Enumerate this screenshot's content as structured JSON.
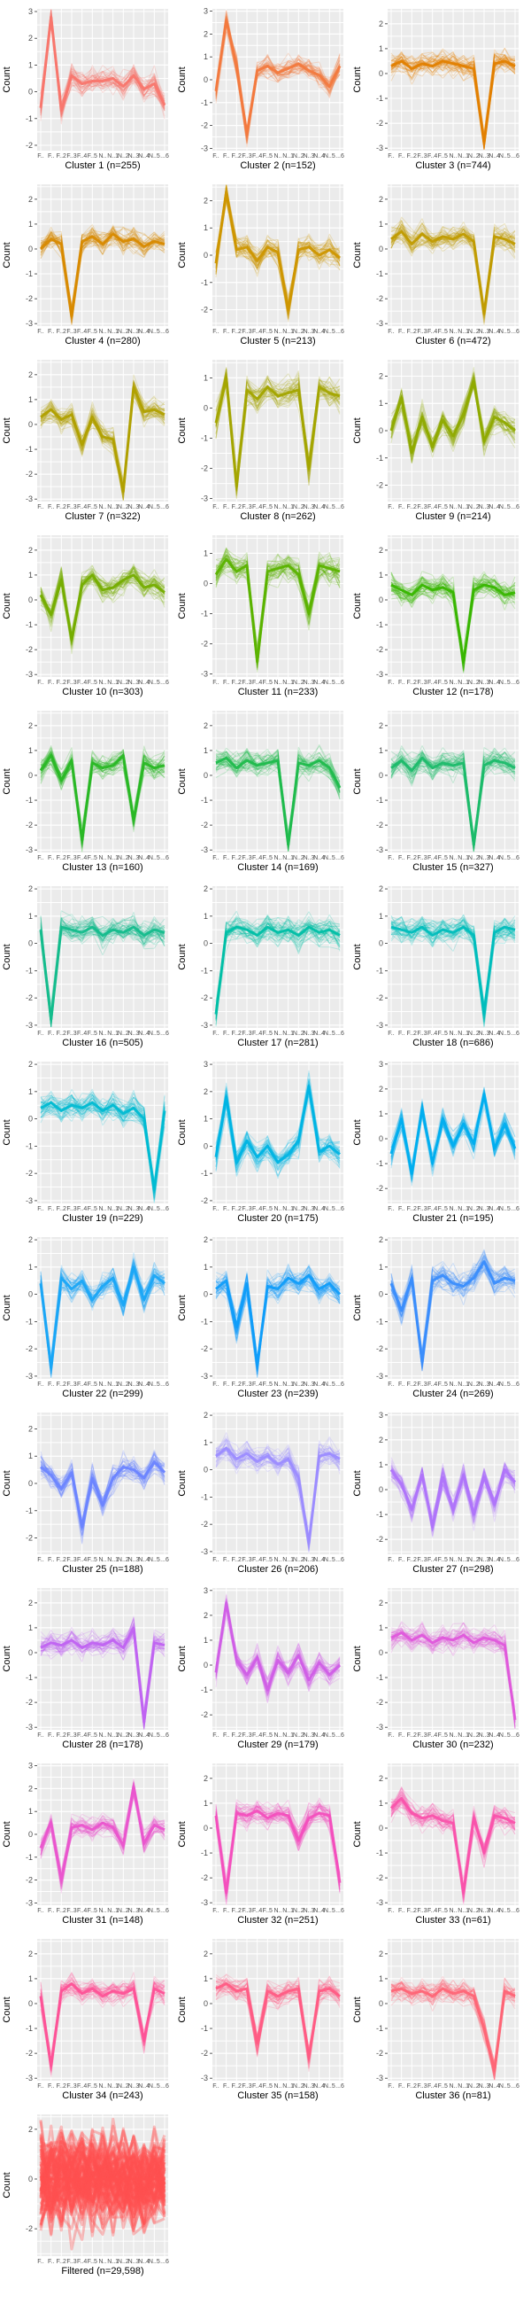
{
  "axes": {
    "ylabel": "Count",
    "x_categories": [
      "F..",
      "F..",
      "F..2",
      "F..3",
      "F..4",
      "F..5",
      "N..",
      "N..1",
      "N..2",
      "N..3",
      "N..4",
      "N..5",
      "...6"
    ]
  },
  "chart_data": [
    {
      "type": "line",
      "title": "Cluster 1 (n=255)",
      "color": "#f8766d",
      "profile": [
        -0.6,
        2.8,
        -0.7,
        0.6,
        0.3,
        0.4,
        0.4,
        0.5,
        0.2,
        0.6,
        0.1,
        0.3,
        -0.5
      ],
      "ylim": [
        -2.2,
        3.1
      ],
      "yticks": [
        -2,
        -1,
        0,
        1,
        2,
        3
      ],
      "ylabel": "Count"
    },
    {
      "type": "line",
      "title": "Cluster 2 (n=152)",
      "color": "#f2793e",
      "profile": [
        -0.5,
        2.6,
        0.6,
        -2.4,
        0.4,
        0.6,
        0.3,
        0.5,
        0.7,
        0.4,
        0.2,
        -0.3,
        0.6
      ],
      "ylim": [
        -3.1,
        3.1
      ],
      "yticks": [
        -3,
        -2,
        -1,
        0,
        1,
        2,
        3
      ],
      "ylabel": "Count"
    },
    {
      "type": "line",
      "title": "Cluster 3 (n=744)",
      "color": "#e27f00",
      "profile": [
        0.3,
        0.5,
        0.2,
        0.4,
        0.3,
        0.5,
        0.4,
        0.3,
        0.2,
        -2.8,
        0.4,
        0.5,
        0.3
      ],
      "ylim": [
        -3.1,
        2.6
      ],
      "yticks": [
        -3,
        -2,
        -1,
        0,
        1,
        2
      ],
      "ylabel": "Count"
    },
    {
      "type": "line",
      "title": "Cluster 4 (n=280)",
      "color": "#d88a00",
      "profile": [
        0.0,
        0.4,
        0.2,
        -2.7,
        0.3,
        0.5,
        0.2,
        0.6,
        0.3,
        0.4,
        0.1,
        0.3,
        0.2
      ],
      "ylim": [
        -3.1,
        2.6
      ],
      "yticks": [
        -3,
        -2,
        -1,
        0,
        1,
        2
      ],
      "ylabel": "Count"
    },
    {
      "type": "line",
      "title": "Cluster 5 (n=213)",
      "color": "#cd9600",
      "profile": [
        -0.3,
        2.3,
        0.2,
        0.3,
        -0.2,
        0.3,
        0.1,
        -2.0,
        0.2,
        0.3,
        0.0,
        0.2,
        -0.1
      ],
      "ylim": [
        -2.6,
        2.6
      ],
      "yticks": [
        -2,
        -1,
        0,
        1,
        2
      ],
      "ylabel": "Count"
    },
    {
      "type": "line",
      "title": "Cluster 6 (n=472)",
      "color": "#c09b00",
      "profile": [
        0.4,
        0.7,
        0.2,
        0.6,
        0.3,
        0.5,
        0.4,
        0.6,
        0.3,
        -2.6,
        0.5,
        0.4,
        0.2
      ],
      "ylim": [
        -3.1,
        2.6
      ],
      "yticks": [
        -3,
        -2,
        -1,
        0,
        1,
        2
      ],
      "ylabel": "Count"
    },
    {
      "type": "line",
      "title": "Cluster 7 (n=322)",
      "color": "#b0a000",
      "profile": [
        0.3,
        0.6,
        0.2,
        0.4,
        -0.8,
        0.3,
        -0.5,
        -0.6,
        -2.7,
        1.5,
        0.5,
        0.6,
        0.4
      ],
      "ylim": [
        -3.1,
        2.6
      ],
      "yticks": [
        -3,
        -2,
        -1,
        0,
        1,
        2
      ],
      "ylabel": "Count"
    },
    {
      "type": "line",
      "title": "Cluster 8 (n=262)",
      "color": "#a3a500",
      "profile": [
        -0.5,
        1.0,
        -2.6,
        0.6,
        0.3,
        0.7,
        0.4,
        0.5,
        0.6,
        -2.0,
        0.7,
        0.5,
        0.4
      ],
      "ylim": [
        -3.1,
        1.6
      ],
      "yticks": [
        -3,
        -2,
        -1,
        0,
        1
      ],
      "ylabel": "Count"
    },
    {
      "type": "line",
      "title": "Cluster 9 (n=214)",
      "color": "#8faa00",
      "profile": [
        0.0,
        1.2,
        -0.8,
        0.5,
        -0.6,
        0.4,
        -0.2,
        0.6,
        1.8,
        -0.4,
        0.5,
        0.3,
        0.0
      ],
      "ylim": [
        -2.6,
        2.6
      ],
      "yticks": [
        -2,
        -1,
        0,
        1,
        2
      ],
      "ylabel": "Count"
    },
    {
      "type": "line",
      "title": "Cluster 10 (n=303)",
      "color": "#75ad00",
      "profile": [
        0.2,
        -0.6,
        0.8,
        -1.6,
        0.6,
        1.0,
        0.4,
        0.5,
        0.8,
        1.0,
        0.5,
        0.6,
        0.3
      ],
      "ylim": [
        -3.1,
        2.6
      ],
      "yticks": [
        -3,
        -2,
        -1,
        0,
        1,
        2
      ],
      "ylabel": "Count"
    },
    {
      "type": "line",
      "title": "Cluster 11 (n=233)",
      "color": "#5bb300",
      "profile": [
        0.3,
        0.8,
        0.4,
        0.6,
        -2.6,
        0.4,
        0.5,
        0.6,
        0.3,
        -1.0,
        0.6,
        0.5,
        0.4
      ],
      "ylim": [
        -3.1,
        1.6
      ],
      "yticks": [
        -3,
        -2,
        -1,
        0,
        1
      ],
      "ylabel": "Count"
    },
    {
      "type": "line",
      "title": "Cluster 12 (n=178)",
      "color": "#38b600",
      "profile": [
        0.6,
        0.4,
        0.2,
        0.6,
        0.4,
        0.5,
        0.3,
        -2.5,
        0.4,
        0.6,
        0.5,
        0.2,
        0.3
      ],
      "ylim": [
        -3.1,
        2.6
      ],
      "yticks": [
        -3,
        -2,
        -1,
        0,
        1,
        2
      ],
      "ylabel": "Count"
    },
    {
      "type": "line",
      "title": "Cluster 13 (n=160)",
      "color": "#29b825",
      "profile": [
        0.2,
        0.8,
        -0.2,
        0.6,
        -2.6,
        0.5,
        0.3,
        0.4,
        0.8,
        -1.8,
        0.5,
        0.3,
        0.4
      ],
      "ylim": [
        -3.1,
        2.6
      ],
      "yticks": [
        -3,
        -2,
        -1,
        0,
        1,
        2
      ],
      "ylabel": "Count"
    },
    {
      "type": "line",
      "title": "Cluster 14 (n=169)",
      "color": "#1fba4c",
      "profile": [
        0.5,
        0.7,
        0.3,
        0.6,
        0.4,
        0.5,
        0.6,
        -2.8,
        0.5,
        0.4,
        0.6,
        0.3,
        -0.5
      ],
      "ylim": [
        -3.1,
        2.6
      ],
      "yticks": [
        -3,
        -2,
        -1,
        0,
        1,
        2
      ],
      "ylabel": "Count"
    },
    {
      "type": "line",
      "title": "Cluster 15 (n=327)",
      "color": "#1bbb6a",
      "profile": [
        0.3,
        0.6,
        0.2,
        0.7,
        0.3,
        0.5,
        0.4,
        0.5,
        -2.8,
        0.4,
        0.6,
        0.5,
        0.3
      ],
      "ylim": [
        -3.1,
        2.6
      ],
      "yticks": [
        -3,
        -2,
        -1,
        0,
        1,
        2
      ],
      "ylabel": "Count"
    },
    {
      "type": "line",
      "title": "Cluster 16 (n=505)",
      "color": "#14bc8c",
      "profile": [
        0.5,
        -2.8,
        0.6,
        0.5,
        0.4,
        0.6,
        0.3,
        0.5,
        0.4,
        0.6,
        0.3,
        0.5,
        0.4
      ],
      "ylim": [
        -3.1,
        2.1
      ],
      "yticks": [
        -3,
        -2,
        -1,
        0,
        1,
        2
      ],
      "ylabel": "Count"
    },
    {
      "type": "line",
      "title": "Cluster 17 (n=281)",
      "color": "#00bfa6",
      "profile": [
        -2.6,
        0.4,
        0.6,
        0.5,
        0.3,
        0.6,
        0.4,
        0.5,
        0.3,
        0.6,
        0.4,
        0.5,
        0.3
      ],
      "ylim": [
        -3.1,
        2.1
      ],
      "yticks": [
        -3,
        -2,
        -1,
        0,
        1,
        2
      ],
      "ylabel": "Count"
    },
    {
      "type": "line",
      "title": "Cluster 18 (n=686)",
      "color": "#00bdbc",
      "profile": [
        0.6,
        0.5,
        0.4,
        0.6,
        0.3,
        0.5,
        0.4,
        0.6,
        0.3,
        -2.6,
        0.4,
        0.6,
        0.5
      ],
      "ylim": [
        -3.1,
        2.1
      ],
      "yticks": [
        -3,
        -2,
        -1,
        0,
        1,
        2
      ],
      "ylabel": "Count"
    },
    {
      "type": "line",
      "title": "Cluster 19 (n=229)",
      "color": "#00bad2",
      "profile": [
        0.4,
        0.6,
        0.3,
        0.5,
        0.4,
        0.6,
        0.3,
        0.5,
        0.2,
        0.4,
        0.0,
        -2.6,
        0.3
      ],
      "ylim": [
        -3.1,
        2.1
      ],
      "yticks": [
        -3,
        -2,
        -1,
        0,
        1,
        2
      ],
      "ylabel": "Count"
    },
    {
      "type": "line",
      "title": "Cluster 20 (n=175)",
      "color": "#00b4e3",
      "profile": [
        -0.4,
        1.8,
        -0.6,
        0.2,
        -0.4,
        0.0,
        -0.6,
        -0.3,
        0.2,
        2.2,
        -0.2,
        0.0,
        -0.3
      ],
      "ylim": [
        -2.1,
        3.1
      ],
      "yticks": [
        -2,
        -1,
        0,
        1,
        2,
        3
      ],
      "ylabel": "Count"
    },
    {
      "type": "line",
      "title": "Cluster 21 (n=195)",
      "color": "#00aeef",
      "profile": [
        -0.6,
        0.8,
        -1.4,
        1.2,
        -1.0,
        0.8,
        -0.3,
        0.6,
        -0.2,
        1.8,
        -0.4,
        0.6,
        -0.4
      ],
      "ylim": [
        -2.6,
        3.1
      ],
      "yticks": [
        -2,
        -1,
        0,
        1,
        2,
        3
      ],
      "ylabel": "Count"
    },
    {
      "type": "line",
      "title": "Cluster 22 (n=299)",
      "color": "#1aa6f5",
      "profile": [
        0.4,
        -2.7,
        0.6,
        0.2,
        0.5,
        -0.2,
        0.3,
        0.6,
        -0.4,
        1.0,
        -0.2,
        0.7,
        0.4
      ],
      "ylim": [
        -3.1,
        2.1
      ],
      "yticks": [
        -3,
        -2,
        -1,
        0,
        1,
        2
      ],
      "ylabel": "Count"
    },
    {
      "type": "line",
      "title": "Cluster 23 (n=239)",
      "color": "#109df9",
      "profile": [
        0.2,
        0.5,
        -1.2,
        0.4,
        -2.6,
        0.3,
        0.2,
        0.6,
        0.4,
        0.7,
        0.2,
        0.4,
        0.0
      ],
      "ylim": [
        -3.1,
        2.1
      ],
      "yticks": [
        -3,
        -2,
        -1,
        0,
        1,
        2
      ],
      "ylabel": "Count"
    },
    {
      "type": "line",
      "title": "Cluster 24 (n=269)",
      "color": "#3a8dfc",
      "profile": [
        0.4,
        -0.6,
        0.6,
        -2.5,
        0.5,
        0.7,
        0.4,
        0.3,
        0.6,
        1.2,
        0.4,
        0.6,
        0.5
      ],
      "ylim": [
        -3.1,
        2.1
      ],
      "yticks": [
        -3,
        -2,
        -1,
        0,
        1,
        2
      ],
      "ylabel": "Count"
    },
    {
      "type": "line",
      "title": "Cluster 25 (n=188)",
      "color": "#6b84ff",
      "profile": [
        0.6,
        0.3,
        -0.2,
        0.4,
        -1.6,
        0.2,
        -0.8,
        0.2,
        0.6,
        0.5,
        0.2,
        0.8,
        0.4
      ],
      "ylim": [
        -2.6,
        2.6
      ],
      "yticks": [
        -2,
        -1,
        0,
        1,
        2
      ],
      "ylabel": "Count"
    },
    {
      "type": "line",
      "title": "Cluster 26 (n=206)",
      "color": "#9c8cff",
      "profile": [
        0.5,
        0.8,
        0.4,
        0.6,
        0.3,
        0.5,
        0.2,
        0.4,
        -0.3,
        -2.7,
        0.5,
        0.6,
        0.4
      ],
      "ylim": [
        -3.1,
        2.1
      ],
      "yticks": [
        -3,
        -2,
        -1,
        0,
        1,
        2
      ],
      "ylabel": "Count"
    },
    {
      "type": "line",
      "title": "Cluster 27 (n=298)",
      "color": "#af74fa",
      "profile": [
        0.8,
        0.2,
        -0.8,
        0.6,
        -1.5,
        0.5,
        -0.8,
        0.6,
        -1.0,
        0.5,
        -0.6,
        0.8,
        0.3
      ],
      "ylim": [
        -2.6,
        3.1
      ],
      "yticks": [
        -2,
        -1,
        0,
        1,
        2,
        3
      ],
      "ylabel": "Count"
    },
    {
      "type": "line",
      "title": "Cluster 28 (n=178)",
      "color": "#c063f1",
      "profile": [
        0.2,
        0.4,
        0.3,
        0.5,
        0.2,
        0.4,
        0.3,
        0.5,
        0.2,
        1.0,
        -2.8,
        0.4,
        0.3
      ],
      "ylim": [
        -3.1,
        2.6
      ],
      "yticks": [
        -3,
        -2,
        -1,
        0,
        1,
        2
      ],
      "ylabel": "Count"
    },
    {
      "type": "line",
      "title": "Cluster 29 (n=179)",
      "color": "#d05ee6",
      "profile": [
        -0.3,
        2.5,
        0.2,
        -0.4,
        0.3,
        -1.0,
        0.2,
        -0.3,
        0.4,
        -0.6,
        0.1,
        -0.4,
        0.0
      ],
      "ylim": [
        -2.6,
        3.1
      ],
      "yticks": [
        -2,
        -1,
        0,
        1,
        2,
        3
      ],
      "ylabel": "Count"
    },
    {
      "type": "line",
      "title": "Cluster 30 (n=232)",
      "color": "#df59db",
      "profile": [
        0.6,
        0.8,
        0.5,
        0.7,
        0.4,
        0.6,
        0.5,
        0.7,
        0.4,
        0.6,
        0.5,
        0.3,
        -2.7
      ],
      "ylim": [
        -3.1,
        2.6
      ],
      "yticks": [
        -3,
        -2,
        -1,
        0,
        1,
        2
      ],
      "ylabel": "Count"
    },
    {
      "type": "line",
      "title": "Cluster 31 (n=148)",
      "color": "#ea55cd",
      "profile": [
        -0.6,
        0.5,
        -2.0,
        0.3,
        0.4,
        0.2,
        0.5,
        0.3,
        -0.5,
        2.1,
        -0.4,
        0.4,
        0.2
      ],
      "ylim": [
        -3.1,
        3.1
      ],
      "yticks": [
        -3,
        -2,
        -1,
        0,
        1,
        2,
        3
      ],
      "ylabel": "Count"
    },
    {
      "type": "line",
      "title": "Cluster 32 (n=251)",
      "color": "#f34fbd",
      "profile": [
        0.5,
        -2.6,
        0.6,
        0.5,
        0.7,
        0.4,
        0.6,
        0.5,
        -0.5,
        0.4,
        0.6,
        0.5,
        -2.2
      ],
      "ylim": [
        -3.1,
        2.6
      ],
      "yticks": [
        -3,
        -2,
        -1,
        0,
        1,
        2
      ],
      "ylabel": "Count"
    },
    {
      "type": "line",
      "title": "Cluster 33 (n=61)",
      "color": "#f953ab",
      "profile": [
        0.8,
        1.2,
        0.6,
        0.4,
        0.5,
        0.3,
        0.2,
        -2.6,
        0.4,
        -1.0,
        0.5,
        0.4,
        0.2
      ],
      "ylim": [
        -3.1,
        2.6
      ],
      "yticks": [
        -3,
        -2,
        -1,
        0,
        1,
        2
      ],
      "ylabel": "Count"
    },
    {
      "type": "line",
      "title": "Cluster 34 (n=243)",
      "color": "#fd5397",
      "profile": [
        0.3,
        -2.5,
        0.5,
        0.8,
        0.4,
        0.6,
        0.3,
        0.5,
        0.4,
        0.6,
        -1.5,
        0.6,
        0.4
      ],
      "ylim": [
        -3.1,
        2.6
      ],
      "yticks": [
        -3,
        -2,
        -1,
        0,
        1,
        2
      ],
      "ylabel": "Count"
    },
    {
      "type": "line",
      "title": "Cluster 35 (n=158)",
      "color": "#ff5c84",
      "profile": [
        0.6,
        0.8,
        0.5,
        0.6,
        -1.6,
        0.5,
        0.3,
        0.5,
        0.6,
        -2.2,
        0.5,
        0.6,
        0.3
      ],
      "ylim": [
        -3.1,
        2.6
      ],
      "yticks": [
        -3,
        -2,
        -1,
        0,
        1,
        2
      ],
      "ylabel": "Count"
    },
    {
      "type": "line",
      "title": "Cluster 36 (n=81)",
      "color": "#fe6576",
      "profile": [
        0.5,
        0.6,
        0.4,
        0.5,
        0.3,
        0.6,
        0.4,
        0.5,
        0.3,
        -1.0,
        -2.7,
        0.5,
        0.3
      ],
      "ylim": [
        -3.1,
        2.6
      ],
      "yticks": [
        -3,
        -2,
        -1,
        0,
        1,
        2
      ],
      "ylabel": "Count"
    },
    {
      "type": "line",
      "title": "Filtered (n=29,598)",
      "color": "#ff4f4f",
      "profile": [
        0,
        0,
        0,
        0,
        0,
        0,
        0,
        0,
        0,
        0,
        0,
        0,
        0
      ],
      "band": true,
      "ylim": [
        -3.1,
        2.6
      ],
      "yticks": [
        -2,
        0,
        2
      ],
      "ylabel": "Count"
    }
  ]
}
